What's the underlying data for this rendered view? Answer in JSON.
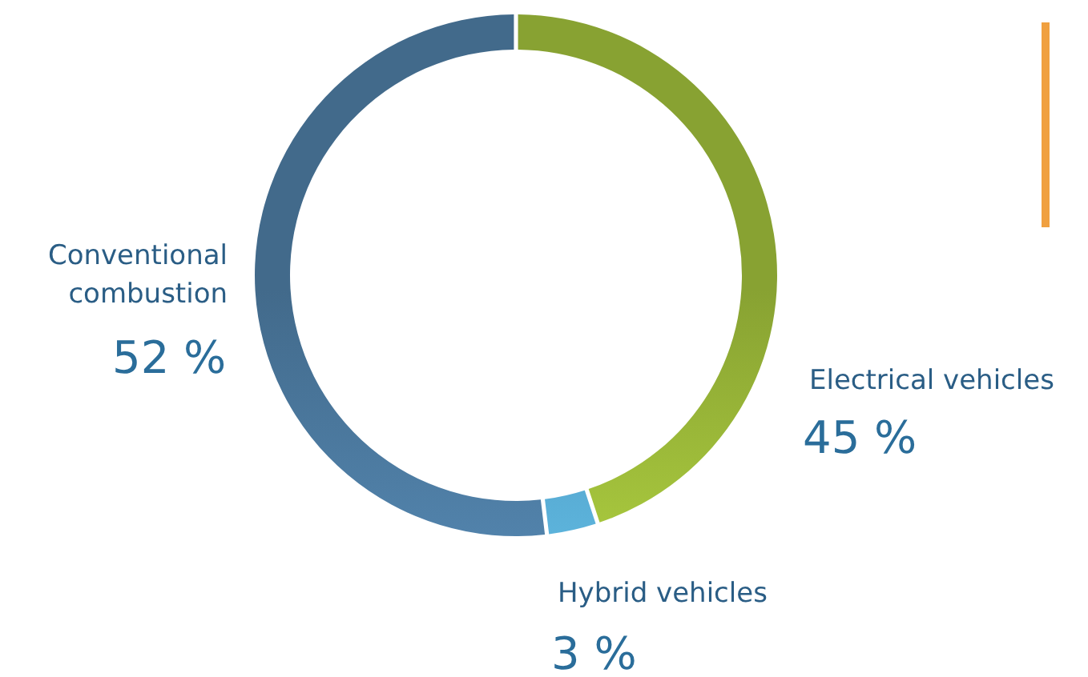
{
  "chart_data": {
    "type": "donut",
    "categories": [
      "Electrical vehicles",
      "Hybrid vehicles",
      "Conventional combustion"
    ],
    "values": [
      45,
      3,
      52
    ],
    "colors": [
      "#a3c23c",
      "#5aaee0",
      "#4f7fa6"
    ],
    "value_labels": [
      "45 %",
      "3 %",
      "52 %"
    ],
    "legend": false
  }
}
